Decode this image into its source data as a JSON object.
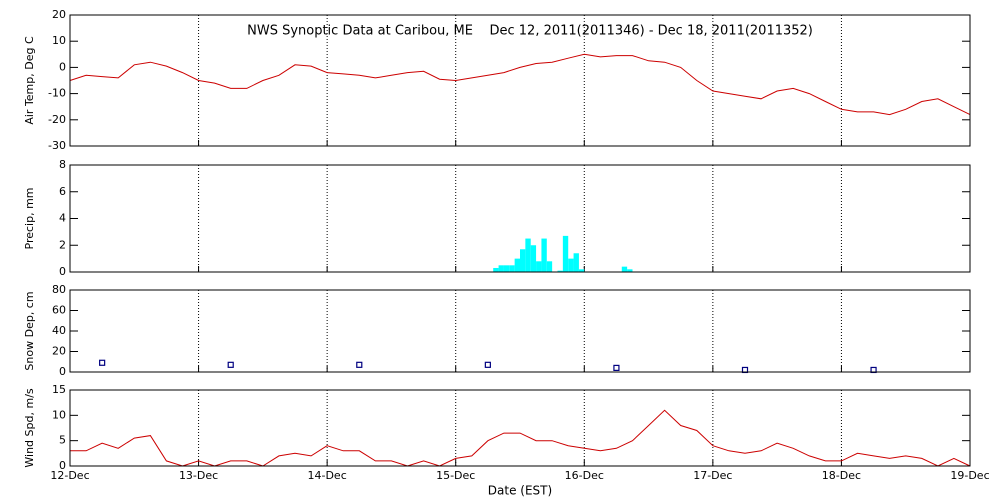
{
  "chart_data": [
    {
      "type": "line",
      "title": "NWS Synoptic Data at Caribou, ME    Dec 12, 2011(2011346) - Dec 18, 2011(2011352)",
      "ylabel": "Air Temp, Deg C",
      "color": "#cc0000",
      "ylim": [
        -30,
        20
      ],
      "yticks": [
        -30,
        -20,
        -10,
        0,
        10,
        20
      ],
      "grid": true,
      "x": [
        0,
        3,
        6,
        9,
        12,
        15,
        18,
        21,
        24,
        27,
        30,
        33,
        36,
        39,
        42,
        45,
        48,
        51,
        54,
        57,
        60,
        63,
        66,
        69,
        72,
        75,
        78,
        81,
        84,
        87,
        90,
        93,
        96,
        99,
        102,
        105,
        108,
        111,
        114,
        117,
        120,
        123,
        126,
        129,
        132,
        135,
        138,
        141,
        144,
        147,
        150,
        153,
        156,
        159,
        162,
        165,
        168
      ],
      "values": [
        -5,
        -3,
        -3.5,
        -4,
        1,
        2,
        0.5,
        -2,
        -5,
        -6,
        -8,
        -8,
        -5,
        -3,
        1,
        0.5,
        -2,
        -2.5,
        -3,
        -4,
        -3,
        -2,
        -1.5,
        -4.5,
        -5,
        -4,
        -3,
        -2,
        0,
        1.5,
        2,
        3.5,
        5,
        4,
        4.5,
        4.5,
        2.5,
        2,
        0,
        -5,
        -9,
        -10,
        -11,
        -12,
        -9,
        -8,
        -10,
        -13,
        -16,
        -17,
        -17,
        -18,
        -16,
        -13,
        -12,
        -15,
        -18
      ]
    },
    {
      "type": "bar",
      "ylabel": "Precip, mm",
      "color": "#00ffff",
      "ylim": [
        0,
        8
      ],
      "yticks": [
        0,
        2,
        4,
        6,
        8
      ],
      "grid": true,
      "x": [
        79,
        80,
        81,
        82,
        83,
        84,
        85,
        86,
        87,
        88,
        89,
        91,
        92,
        93,
        94,
        95,
        103,
        104
      ],
      "values": [
        0.3,
        0.5,
        0.5,
        0.5,
        1,
        1.7,
        2.5,
        2,
        0.8,
        2.5,
        0.8,
        0.1,
        2.7,
        1,
        1.4,
        0.2,
        0.4,
        0.2
      ]
    },
    {
      "type": "scatter",
      "ylabel": "Snow Dep, cm",
      "color": "#000080",
      "ylim": [
        0,
        80
      ],
      "yticks": [
        0,
        20,
        40,
        60,
        80
      ],
      "grid": true,
      "x": [
        6,
        30,
        54,
        78,
        102,
        126,
        150
      ],
      "values": [
        9,
        7,
        7,
        7,
        4,
        2,
        2
      ]
    },
    {
      "type": "line",
      "ylabel": "Wind Spd, m/s",
      "xlabel": "Date (EST)",
      "color": "#cc0000",
      "ylim": [
        0,
        15
      ],
      "yticks": [
        0,
        5,
        10,
        15
      ],
      "grid": true,
      "xlim": [
        0,
        168
      ],
      "xticks": [
        {
          "value": 0,
          "label": "12-Dec"
        },
        {
          "value": 24,
          "label": "13-Dec"
        },
        {
          "value": 48,
          "label": "14-Dec"
        },
        {
          "value": 72,
          "label": "15-Dec"
        },
        {
          "value": 96,
          "label": "16-Dec"
        },
        {
          "value": 120,
          "label": "17-Dec"
        },
        {
          "value": 144,
          "label": "18-Dec"
        },
        {
          "value": 168,
          "label": "19-Dec"
        }
      ],
      "x": [
        0,
        3,
        6,
        9,
        12,
        15,
        18,
        21,
        24,
        27,
        30,
        33,
        36,
        39,
        42,
        45,
        48,
        51,
        54,
        57,
        60,
        63,
        66,
        69,
        72,
        75,
        78,
        81,
        84,
        87,
        90,
        93,
        96,
        99,
        102,
        105,
        108,
        111,
        114,
        117,
        120,
        123,
        126,
        129,
        132,
        135,
        138,
        141,
        144,
        147,
        150,
        153,
        156,
        159,
        162,
        165,
        168
      ],
      "values": [
        3,
        3,
        4.5,
        3.5,
        5.5,
        6,
        1,
        0,
        1,
        0,
        1,
        1,
        0,
        2,
        2.5,
        2,
        4,
        3,
        3,
        1,
        1,
        0,
        1,
        0,
        1.5,
        2,
        5,
        6.5,
        6.5,
        5,
        5,
        4,
        3.5,
        3,
        3.5,
        5,
        8,
        11,
        8,
        7,
        4,
        3,
        2.5,
        3,
        4.5,
        3.5,
        2,
        1,
        1,
        2.5,
        2,
        1.5,
        2,
        1.5,
        0,
        1.5,
        0
      ]
    }
  ]
}
